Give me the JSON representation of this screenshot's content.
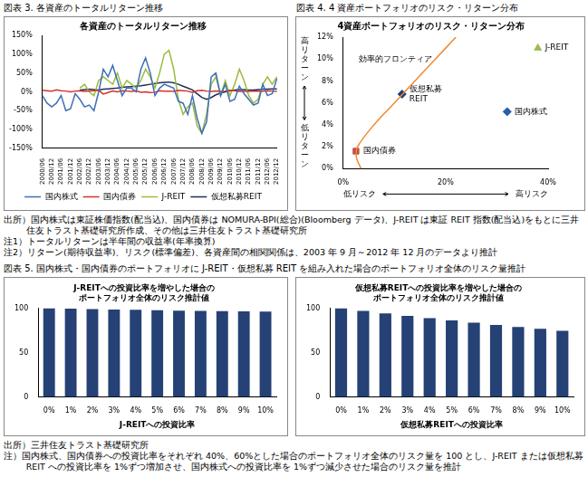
{
  "header_fig3": "図表 3. 各資産のトータルリターン推移",
  "header_fig4": "図表 4. 4 資産ポートフォリオのリスク・リターン分布",
  "notes_top": [
    "出所）国内株式は東証株価指数(配当込)、国内債券は NOMURA-BPI(総合)(Bloomberg データ)、J-REIT は東証 REIT 指数(配当込)をもとに三井住友トラスト基礎研究所作成、その他は三井住友トラスト基礎研究所",
    "注1）トータルリターンは半年間の収益率(年率換算)",
    "注2）リターン(期待収益率)、リスク(標準偏差)、各資産間の相関関係は、2003 年 9 月～2012 年 12 月のデータより推計"
  ],
  "header_fig5": "図表 5. 国内株式・国内債券のポートフォリオに J-REIT・仮想私募 REIT を組み入れた場合のポートフォリオ全体のリスク量推計",
  "notes_bottom": [
    "出所）三井住友トラスト基礎研究所",
    "注）国内株式、国内債券への投資比率をそれぞれ 40%、60%とした場合のポートフォリオ全体のリスク量を 100 とし、J-REIT または仮想私募 REIT への投資比率を 1%ずつ増加させ、国内株式への投資比率を 1%ずつ減少させた場合のリスク量を推計"
  ],
  "chart_data": [
    {
      "type": "line",
      "title": "各資産のトータルリターン推移",
      "categories": [
        "2000/06",
        null,
        "2000/12",
        null,
        "2001/06",
        null,
        "2001/12",
        null,
        "2002/06",
        null,
        "2002/12",
        null,
        "2003/06",
        null,
        "2003/12",
        null,
        "2004/06",
        null,
        "2004/12",
        null,
        "2005/06",
        null,
        "2005/12",
        null,
        "2006/06",
        null,
        "2006/12",
        null,
        "2007/06",
        null,
        "2007/12",
        null,
        "2008/06",
        null,
        "2008/12",
        null,
        "2009/06",
        null,
        "2009/12",
        null,
        "2010/06",
        null,
        "2010/12",
        null,
        "2011/06",
        null,
        "2011/12",
        null,
        "2012/06",
        null,
        "2012/12"
      ],
      "series": [
        {
          "name": "国内株式",
          "color": "#3f6fb5",
          "values": [
            -10,
            -30,
            -40,
            -30,
            -10,
            -50,
            -45,
            -5,
            -20,
            -40,
            -35,
            -50,
            0,
            60,
            40,
            70,
            30,
            -10,
            10,
            10,
            0,
            60,
            90,
            50,
            -10,
            10,
            20,
            15,
            10,
            -25,
            -30,
            -60,
            -10,
            -70,
            -110,
            -80,
            40,
            50,
            -10,
            20,
            -25,
            -20,
            15,
            -5,
            -20,
            -35,
            -30,
            20,
            -10,
            -5,
            35
          ]
        },
        {
          "name": "国内債券",
          "color": "#d9302a",
          "values": [
            4,
            3,
            2,
            5,
            3,
            2,
            0,
            2,
            3,
            1,
            2,
            3,
            4,
            -6,
            -2,
            2,
            0,
            3,
            2,
            1,
            3,
            -1,
            0,
            -2,
            -1,
            3,
            2,
            2,
            1,
            4,
            3,
            2,
            -2,
            3,
            4,
            2,
            1,
            2,
            1,
            2,
            4,
            3,
            1,
            1,
            1,
            2,
            2,
            2,
            3,
            2,
            1
          ]
        },
        {
          "name": "J-REIT",
          "color": "#9bbb3f",
          "values": [
            null,
            null,
            null,
            null,
            null,
            null,
            null,
            null,
            10,
            20,
            0,
            -10,
            30,
            40,
            30,
            20,
            50,
            10,
            30,
            20,
            10,
            30,
            60,
            40,
            10,
            50,
            100,
            110,
            60,
            -20,
            -60,
            -40,
            -30,
            -90,
            -110,
            -60,
            20,
            40,
            -10,
            30,
            -10,
            20,
            60,
            30,
            -10,
            -30,
            -20,
            20,
            40,
            20,
            40
          ]
        },
        {
          "name": "仮想私募REIT",
          "color": "#1f2f5a",
          "values": [
            null,
            null,
            null,
            null,
            null,
            null,
            null,
            null,
            5,
            6,
            7,
            6,
            5,
            7,
            8,
            9,
            10,
            12,
            13,
            14,
            15,
            16,
            18,
            20,
            22,
            24,
            25,
            26,
            24,
            20,
            15,
            10,
            5,
            -5,
            -15,
            -20,
            -15,
            -8,
            -3,
            0,
            3,
            5,
            6,
            6,
            5,
            5,
            6,
            7,
            7,
            8,
            8
          ]
        }
      ],
      "ylim": [
        -150,
        150
      ],
      "yticks": [
        {
          "value": -150,
          "label": "-150%"
        },
        {
          "value": -100,
          "label": "-100%"
        },
        {
          "value": -50,
          "label": "-50%"
        },
        {
          "value": 0,
          "label": "0%"
        },
        {
          "value": 50,
          "label": "50%"
        },
        {
          "value": 100,
          "label": "100%"
        },
        {
          "value": 150,
          "label": "150%"
        }
      ],
      "legend": "bottom",
      "grid": false
    },
    {
      "type": "scatter",
      "title": "4資産ポートフォリオのリスク・リターン分布",
      "x_label": [
        "低リスク",
        "高リスク"
      ],
      "y_label": [
        "高リターン",
        "低リターン"
      ],
      "series": [
        {
          "name": "効率的フロンティア",
          "type": "line",
          "marker": "none",
          "line_style": "solid",
          "color": "#f08a30",
          "x": [
            3.5,
            2.6,
            2.8,
            6,
            10,
            14,
            18,
            22
          ],
          "values": [
            0,
            1,
            2,
            4,
            6,
            8,
            10,
            12
          ]
        },
        {
          "name": "国内債券",
          "marker": "square",
          "color": "#c0504d",
          "x": [
            2.5
          ],
          "values": [
            1.6
          ]
        },
        {
          "name": "仮想私募 REIT",
          "marker": "diamond",
          "color": "#1f3a7a",
          "x": [
            11.5
          ],
          "values": [
            6.8
          ]
        },
        {
          "name": "国内株式",
          "marker": "diamond",
          "color": "#2a5caa",
          "x": [
            32
          ],
          "values": [
            5.2
          ]
        },
        {
          "name": "J-REIT",
          "marker": "triangle",
          "color": "#9bbb59",
          "x": [
            38
          ],
          "values": [
            11
          ]
        }
      ],
      "xlim": [
        0,
        40
      ],
      "xticks": [
        {
          "value": 0,
          "label": "0%"
        },
        {
          "value": 20,
          "label": "20%"
        },
        {
          "value": 40,
          "label": "40%"
        }
      ],
      "ylim": [
        0,
        12
      ],
      "yticks": [
        {
          "value": 0,
          "label": "0%"
        },
        {
          "value": 2,
          "label": "2%"
        },
        {
          "value": 4,
          "label": "4%"
        },
        {
          "value": 6,
          "label": "6%"
        },
        {
          "value": 8,
          "label": "8%"
        },
        {
          "value": 10,
          "label": "10%"
        },
        {
          "value": 12,
          "label": "12%"
        }
      ],
      "grid": false
    },
    {
      "type": "bar",
      "title": [
        "J-REITへの投資比率を増やした場合の",
        "ポートフォリオ全体のリスク推計値"
      ],
      "x_label": "J-REITへの投資比率",
      "categories": [
        "0%",
        "1%",
        "2%",
        "3%",
        "4%",
        "5%",
        "6%",
        "7%",
        "8%",
        "9%",
        "10%"
      ],
      "values": [
        100,
        99.5,
        99.0,
        98.6,
        98.2,
        97.8,
        97.4,
        97.1,
        96.8,
        96.5,
        96.3
      ],
      "color": "#254175",
      "ylim": [
        0,
        100
      ],
      "yticks": [
        0,
        50,
        100
      ],
      "grid": false
    },
    {
      "type": "bar",
      "title": [
        "仮想私募REITへの投資比率を増やした場合の",
        "ポートフォリオ全体のリスク推計値"
      ],
      "x_label": "仮想私募REITへの投資比率",
      "categories": [
        "0%",
        "1%",
        "2%",
        "3%",
        "4%",
        "5%",
        "6%",
        "7%",
        "8%",
        "9%",
        "10%"
      ],
      "values": [
        100,
        97,
        94.2,
        91.5,
        88.8,
        86.2,
        83.7,
        81.3,
        79,
        76.8,
        74.7
      ],
      "color": "#254175",
      "ylim": [
        0,
        100
      ],
      "yticks": [
        0,
        50,
        100
      ],
      "grid": false
    }
  ]
}
